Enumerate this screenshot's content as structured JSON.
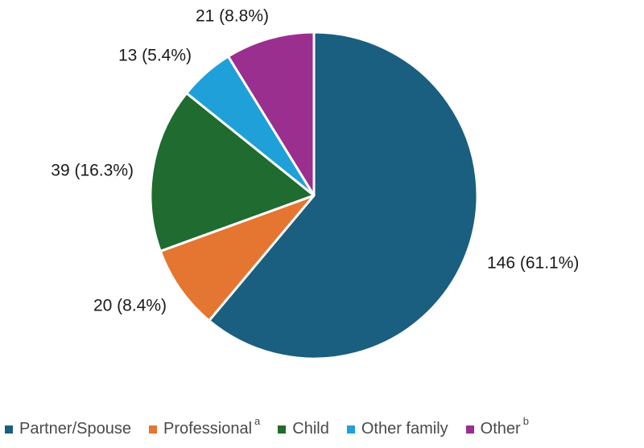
{
  "chart_data": {
    "type": "pie",
    "title": "",
    "slices": [
      {
        "category": "Partner/Spouse",
        "footnote": "",
        "value": 146,
        "percent": 61.1,
        "label": "146 (61.1%)",
        "color": "#1a5e80"
      },
      {
        "category": "Professional",
        "footnote": "a",
        "value": 20,
        "percent": 8.4,
        "label": "20 (8.4%)",
        "color": "#e57632"
      },
      {
        "category": "Child",
        "footnote": "",
        "value": 39,
        "percent": 16.3,
        "label": "39 (16.3%)",
        "color": "#1f6b30"
      },
      {
        "category": "Other family",
        "footnote": "",
        "value": 13,
        "percent": 5.4,
        "label": "13 (5.4%)",
        "color": "#1fa0d8"
      },
      {
        "category": "Other",
        "footnote": "b",
        "value": 21,
        "percent": 8.8,
        "label": "21 (8.8%)",
        "color": "#9a2f8f"
      }
    ],
    "legend_position": "bottom"
  }
}
